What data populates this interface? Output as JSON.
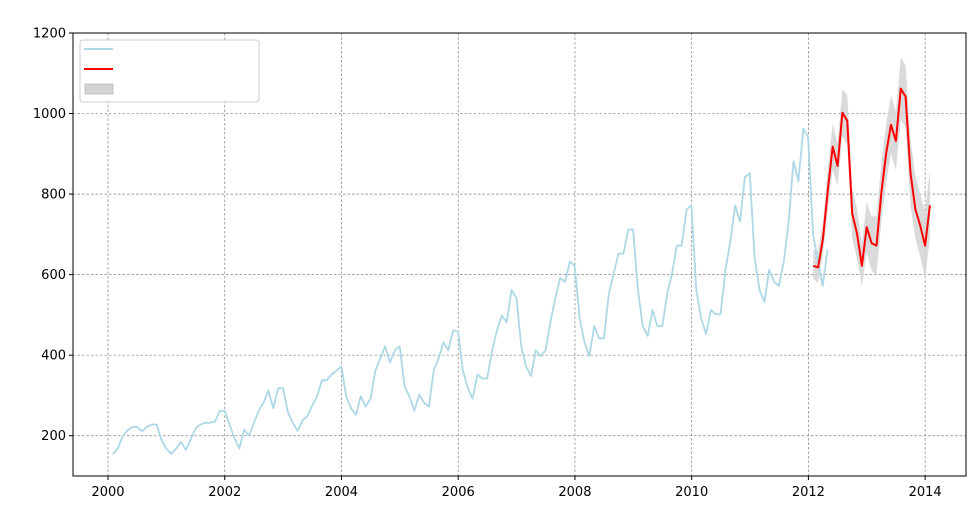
{
  "chart_data": {
    "type": "line",
    "title": "",
    "xlabel": "",
    "ylabel": "",
    "xlim": [
      1999.4,
      2014.7
    ],
    "ylim": [
      100,
      1200
    ],
    "x_ticks": [
      2000,
      2002,
      2004,
      2006,
      2008,
      2010,
      2012,
      2014
    ],
    "x_tick_labels": [
      "2000",
      "2002",
      "2004",
      "2006",
      "2008",
      "2010",
      "2012",
      "2014"
    ],
    "y_ticks": [
      200,
      400,
      600,
      800,
      1000,
      1200
    ],
    "y_tick_labels": [
      "200",
      "400",
      "600",
      "800",
      "1000",
      "1200"
    ],
    "grid": true,
    "legend_position": "top-left",
    "colors": {
      "historical": "#add8e6",
      "forecast": "#ff0000",
      "interval": "#d3d3d3"
    },
    "series": [
      {
        "start": 2000.083,
        "step": 0.0833,
        "values": [
          155,
          168,
          198,
          213,
          222,
          222,
          211,
          222,
          228,
          228,
          190,
          168,
          155,
          168,
          185,
          165,
          190,
          218,
          228,
          232,
          232,
          235,
          262,
          262,
          228,
          195,
          168,
          215,
          200,
          232,
          262,
          282,
          312,
          268,
          318,
          318,
          258,
          232,
          212,
          238,
          248,
          275,
          298,
          338,
          338,
          352,
          362,
          372,
          298,
          268,
          252,
          298,
          272,
          292,
          362,
          392,
          422,
          382,
          412,
          422,
          322,
          298,
          262,
          302,
          282,
          272,
          362,
          392,
          432,
          412,
          462,
          458,
          362,
          318,
          292,
          352,
          342,
          342,
          412,
          462,
          498,
          482,
          562,
          542,
          422,
          372,
          348,
          412,
          398,
          412,
          482,
          542,
          592,
          582,
          632,
          622,
          492,
          432,
          398,
          472,
          442,
          442,
          552,
          602,
          652,
          652,
          712,
          712,
          562,
          472,
          448,
          512,
          472,
          472,
          552,
          602,
          672,
          672,
          762,
          772,
          562,
          492,
          452,
          512,
          502,
          502,
          612,
          682,
          772,
          732,
          842,
          852,
          642,
          562,
          532,
          612,
          582,
          572,
          632,
          732,
          882,
          832,
          962,
          942,
          702,
          632,
          572,
          662
        ]
      },
      {
        "start": 2012.083,
        "step": 0.0833,
        "values": [
          622,
          618,
          690,
          810,
          918,
          870,
          1002,
          982,
          752,
          702,
          622,
          718,
          678,
          672,
          802,
          902,
          972,
          932,
          1062,
          1042,
          852,
          762,
          722,
          672,
          772
        ]
      }
    ],
    "interval": {
      "start": 2012.083,
      "step": 0.0833,
      "lower": [
        590,
        580,
        650,
        760,
        860,
        820,
        945,
        920,
        690,
        640,
        570,
        655,
        610,
        600,
        730,
        830,
        900,
        860,
        985,
        965,
        770,
        690,
        645,
        590,
        690
      ],
      "upper": [
        660,
        660,
        730,
        860,
        975,
        925,
        1060,
        1045,
        815,
        765,
        675,
        780,
        745,
        745,
        875,
        975,
        1045,
        1005,
        1140,
        1120,
        935,
        845,
        800,
        755,
        860
      ]
    }
  }
}
